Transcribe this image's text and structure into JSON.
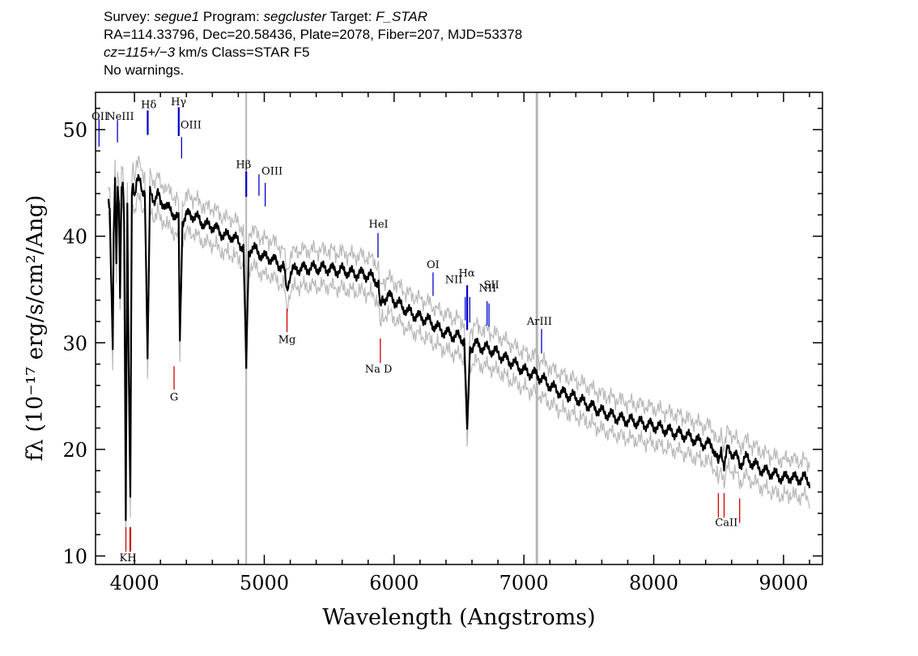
{
  "header": {
    "line1": {
      "survey_label": "Survey: ",
      "survey": "segue1",
      "program_label": " Program: ",
      "program": "segcluster",
      "target_label": " Target: ",
      "target": "F_STAR"
    },
    "line2": "RA=114.33796, Dec=20.58436, Plate=2078, Fiber=207, MJD=53378",
    "line3": {
      "cz": "cz=115+/−3",
      "rest": " km/s Class=STAR F5"
    },
    "line4": "No warnings."
  },
  "chart_data": {
    "type": "line",
    "xlabel": "Wavelength (Angstroms)",
    "ylabel": "fλ (10⁻¹⁷ erg/s/cm²/Ang)",
    "xlim": [
      3700,
      9300
    ],
    "ylim": [
      9.2,
      53.5
    ],
    "xticks": [
      4000,
      5000,
      6000,
      7000,
      8000,
      9000
    ],
    "yticks": [
      10,
      20,
      30,
      40,
      50
    ],
    "vertical_bands": [
      {
        "x": 4861,
        "color": "#b4b4b4"
      },
      {
        "x": 7100,
        "color": "#b4b4b4"
      }
    ],
    "colors": {
      "spectrum": "#000000",
      "error": "#b8b8b8",
      "emission": "#0000cc",
      "absorption": "#cc0000"
    },
    "series": [
      {
        "x": [
          3800,
          3810,
          3820,
          3833,
          3840,
          3850,
          3860,
          3870,
          3880,
          3889,
          3900,
          3910,
          3920,
          3933,
          3945,
          3955,
          3968,
          3980,
          3990,
          4000,
          4020,
          4040,
          4060,
          4080,
          4101,
          4120,
          4150,
          4180,
          4200,
          4230,
          4260,
          4290,
          4310,
          4340,
          4350,
          4370,
          4400,
          4450,
          4500,
          4550,
          4600,
          4650,
          4700,
          4750,
          4800,
          4840,
          4861,
          4880,
          4900,
          4950,
          5000,
          5050,
          5100,
          5150,
          5173,
          5200,
          5250,
          5300,
          5350,
          5400,
          5450,
          5500,
          5550,
          5600,
          5650,
          5700,
          5750,
          5800,
          5850,
          5880,
          5893,
          5910,
          5950,
          6000,
          6050,
          6100,
          6150,
          6200,
          6250,
          6300,
          6350,
          6400,
          6450,
          6500,
          6540,
          6563,
          6585,
          6620,
          6650,
          6700,
          6750,
          6800,
          6850,
          6900,
          6950,
          7000,
          7050,
          7100,
          7150,
          7200,
          7250,
          7300,
          7400,
          7500,
          7600,
          7700,
          7800,
          7900,
          8000,
          8100,
          8200,
          8300,
          8400,
          8450,
          8498,
          8520,
          8542,
          8570,
          8600,
          8630,
          8662,
          8700,
          8750,
          8800,
          8850,
          8900,
          8950,
          9000,
          9050,
          9100,
          9150,
          9200
        ],
        "y": [
          43.5,
          42,
          36,
          29.5,
          40,
          46,
          38,
          44.5,
          43,
          34,
          44,
          45,
          42,
          14,
          43,
          28,
          15,
          44,
          45,
          44,
          45.5,
          45,
          44,
          44.5,
          28.5,
          44,
          43.5,
          44,
          43,
          43.2,
          42.5,
          42.3,
          42,
          41.5,
          30,
          41.5,
          42,
          42,
          41.5,
          41,
          41,
          40.5,
          40,
          40,
          39.5,
          39,
          27.5,
          38.5,
          39,
          38.5,
          38,
          38,
          37.5,
          37,
          35,
          36.5,
          37,
          37,
          37,
          37,
          37,
          37,
          36.8,
          36.8,
          36.6,
          36.5,
          36.5,
          36.3,
          36,
          35.5,
          33,
          34,
          34.5,
          34,
          33.5,
          33,
          32.7,
          32.4,
          32.2,
          31.7,
          31.3,
          31,
          30.7,
          30.5,
          30.3,
          21.5,
          29.5,
          30,
          29.7,
          29.5,
          29.3,
          29,
          28.6,
          28.2,
          27.8,
          27.4,
          27.2,
          27,
          26.5,
          26,
          25.6,
          25.3,
          24.8,
          24.2,
          23.5,
          23.1,
          22.7,
          22.5,
          22.2,
          21.8,
          21.5,
          21,
          20.5,
          20.5,
          18.5,
          20.2,
          18.5,
          20,
          19.8,
          19.5,
          18.5,
          19.2,
          18.8,
          18.4,
          18,
          17.8,
          17.5,
          17.3,
          17.5,
          17.2,
          17.3,
          17
        ]
      }
    ],
    "lines": [
      {
        "label": "OII",
        "x": 3727,
        "kind": "emission",
        "y_top": 51.0,
        "y_bot": 48.4
      },
      {
        "label": "NeIII",
        "x": 3869,
        "kind": "emission",
        "y_top": 50.9,
        "y_bot": 48.8
      },
      {
        "label": "Hδ",
        "x": 4102,
        "kind": "emission",
        "y_top": 51.8,
        "y_bot": 49.5
      },
      {
        "label": "Hγ",
        "x": 4341,
        "kind": "emission",
        "y_top": 52.1,
        "y_bot": 49.4
      },
      {
        "label": "OIII",
        "x": 4363,
        "kind": "emission",
        "y_top": 49.3,
        "y_bot": 47.3
      },
      {
        "label": "Hβ",
        "x": 4861,
        "kind": "emission",
        "y_top": 46.1,
        "y_bot": 43.7
      },
      {
        "label": "OIII",
        "x": 4959,
        "kind": "emission",
        "y_top": 45.8,
        "y_bot": 43.8
      },
      {
        "label": "OIII",
        "x": 5007,
        "kind": "emission",
        "y_top": 45.0,
        "y_bot": 42.8
      },
      {
        "label": "HeI",
        "x": 5876,
        "kind": "emission",
        "y_top": 40.3,
        "y_bot": 38.0
      },
      {
        "label": "OI",
        "x": 6300,
        "kind": "emission",
        "y_top": 36.6,
        "y_bot": 34.4
      },
      {
        "label": "NII",
        "x": 6548,
        "kind": "emission",
        "y_top": 34.3,
        "y_bot": 32.1
      },
      {
        "label": "Hα",
        "x": 6563,
        "kind": "emission",
        "y_top": 35.4,
        "y_bot": 31.2
      },
      {
        "label": "NII",
        "x": 6583,
        "kind": "emission",
        "y_top": 34.3,
        "y_bot": 31.9
      },
      {
        "label": "SII",
        "x": 6716,
        "kind": "emission",
        "y_top": 33.9,
        "y_bot": 31.6
      },
      {
        "label": "SII",
        "x": 6731,
        "kind": "emission",
        "y_top": 33.7,
        "y_bot": 31.5
      },
      {
        "label": "ArIII",
        "x": 7136,
        "kind": "emission",
        "y_top": 31.3,
        "y_bot": 29.0
      },
      {
        "label": "K",
        "x": 3934,
        "kind": "absorption",
        "y_top": 12.7,
        "y_bot": 10.4
      },
      {
        "label": "H",
        "x": 3968,
        "kind": "absorption",
        "y_top": 12.7,
        "y_bot": 10.4
      },
      {
        "label": "G",
        "x": 4305,
        "kind": "absorption",
        "y_top": 27.8,
        "y_bot": 25.6
      },
      {
        "label": "Mg",
        "x": 5175,
        "kind": "absorption",
        "y_top": 33.2,
        "y_bot": 31.0
      },
      {
        "label": "Na",
        "x": 5894,
        "kind": "absorption",
        "y_top": 30.4,
        "y_bot": 28.1
      },
      {
        "label": "CaII",
        "x": 8498,
        "kind": "absorption",
        "y_top": 15.9,
        "y_bot": 13.6
      },
      {
        "label": "CaII",
        "x": 8542,
        "kind": "absorption",
        "y_top": 15.9,
        "y_bot": 13.6
      },
      {
        "label": "CaII",
        "x": 8662,
        "kind": "absorption",
        "y_top": 15.4,
        "y_bot": 13.1
      }
    ],
    "line_labels": [
      {
        "text": "OII",
        "x": 3735,
        "y": 50.9
      },
      {
        "text": "NeIII",
        "x": 3890,
        "y": 50.9
      },
      {
        "text": "Hδ",
        "x": 4110,
        "y": 52.0
      },
      {
        "text": "Hγ",
        "x": 4340,
        "y": 52.3
      },
      {
        "text": "OIII",
        "x": 4435,
        "y": 50.1
      },
      {
        "text": "Hβ",
        "x": 4840,
        "y": 46.4
      },
      {
        "text": "OIII",
        "x": 5060,
        "y": 45.8
      },
      {
        "text": "HeI",
        "x": 5880,
        "y": 40.8
      },
      {
        "text": "OI",
        "x": 6300,
        "y": 37.0
      },
      {
        "text": "NII",
        "x": 6460,
        "y": 35.6
      },
      {
        "text": "Hα",
        "x": 6560,
        "y": 36.2
      },
      {
        "text": "NII",
        "x": 6720,
        "y": 34.8
      },
      {
        "text": "SII",
        "x": 6750,
        "y": 35.1
      },
      {
        "text": "ArIII",
        "x": 7120,
        "y": 31.7
      },
      {
        "text": "KH",
        "x": 3950,
        "y": 9.5
      },
      {
        "text": "G",
        "x": 4305,
        "y": 24.6
      },
      {
        "text": "Mg",
        "x": 5175,
        "y": 30.0
      },
      {
        "text": "Na D",
        "x": 5880,
        "y": 27.2
      },
      {
        "text": "CaII",
        "x": 8560,
        "y": 12.8
      }
    ]
  }
}
